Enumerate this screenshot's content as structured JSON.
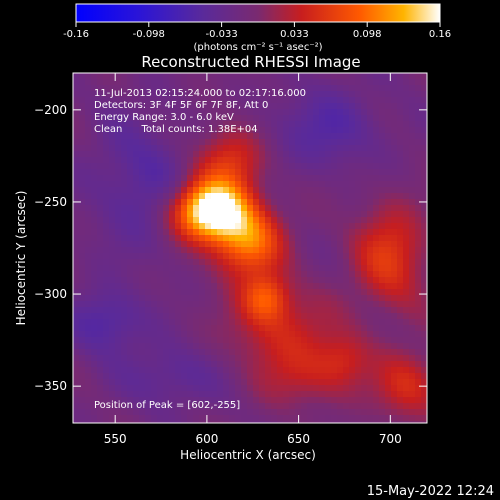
{
  "chart_data": {
    "type": "heatmap",
    "title": "Reconstructed RHESSI Image",
    "xlabel": "Heliocentric X (arcsec)",
    "ylabel": "Heliocentric Y (arcsec)",
    "xlim": [
      527,
      720
    ],
    "ylim": [
      -370,
      -180
    ],
    "xticks": [
      550,
      600,
      650,
      700
    ],
    "yticks": [
      -200,
      -250,
      -300,
      -350
    ],
    "colorbar": {
      "ticks": [
        "-0.16",
        "-0.098",
        "-0.033",
        "0.033",
        "0.098",
        "0.16"
      ],
      "min": -0.16,
      "max": 0.16,
      "unit_label": "(photons cm⁻² s⁻¹ asec⁻²)"
    },
    "info_lines": [
      "11-Jul-2013 02:15:24.000 to 02:17:16.000",
      "Detectors: 3F 4F 5F 6F 7F 8F, Att 0",
      "Energy Range: 3.0 - 6.0 keV",
      "Clean      Total counts: 1.38E+04"
    ],
    "peak_label": "Position of Peak = [602,-255]",
    "peak": {
      "x": 602,
      "y": -255,
      "value": 0.16
    },
    "sources": [
      {
        "x": 602,
        "y": -255,
        "sx": 14,
        "sy": 11,
        "amp": 0.2
      },
      {
        "x": 622,
        "y": -272,
        "sx": 13,
        "sy": 13,
        "amp": 0.11
      },
      {
        "x": 612,
        "y": -228,
        "sx": 13,
        "sy": 13,
        "amp": 0.07
      },
      {
        "x": 632,
        "y": -302,
        "sx": 9,
        "sy": 9,
        "amp": 0.08
      },
      {
        "x": 640,
        "y": -320,
        "sx": 20,
        "sy": 15,
        "amp": 0.05
      },
      {
        "x": 655,
        "y": -345,
        "sx": 18,
        "sy": 12,
        "amp": 0.04
      },
      {
        "x": 700,
        "y": -280,
        "sx": 14,
        "sy": 20,
        "amp": 0.07
      },
      {
        "x": 710,
        "y": -350,
        "sx": 13,
        "sy": 13,
        "amp": 0.06
      },
      {
        "x": 675,
        "y": -335,
        "sx": 10,
        "sy": 10,
        "amp": 0.04
      },
      {
        "x": 545,
        "y": -315,
        "sx": 14,
        "sy": 12,
        "amp": -0.05
      },
      {
        "x": 565,
        "y": -240,
        "sx": 20,
        "sy": 26,
        "amp": -0.04
      },
      {
        "x": 665,
        "y": -210,
        "sx": 22,
        "sy": 16,
        "amp": -0.04
      },
      {
        "x": 580,
        "y": -345,
        "sx": 18,
        "sy": 12,
        "amp": -0.035
      }
    ]
  },
  "footer_date": "15-May-2022 12:24"
}
